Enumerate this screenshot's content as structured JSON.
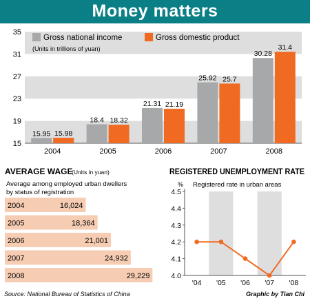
{
  "title": "Money matters",
  "source": "Source: National Bureau of Statistics of China",
  "credit": "Graphic by Tian Chi",
  "colors": {
    "header": "#0a7f86",
    "gni": "#a7a8aa",
    "gdp": "#f06a22",
    "band": "#dedede",
    "wagebar": "#f6cdb3"
  },
  "chart_data": [
    {
      "type": "bar",
      "title": "",
      "subtitle": "(Units in trillions of yuan)",
      "categories": [
        "2004",
        "2005",
        "2006",
        "2007",
        "2008"
      ],
      "series": [
        {
          "name": "Gross national income",
          "values": [
            15.95,
            18.4,
            21.31,
            25.92,
            30.28
          ],
          "labels": [
            "15.95",
            "18.4",
            "21.31",
            "25.92",
            "30.28"
          ]
        },
        {
          "name": "Gross domestic product",
          "values": [
            15.98,
            18.32,
            21.19,
            25.7,
            31.4
          ],
          "labels": [
            "15.98",
            "18.32",
            "21.19",
            "25.7",
            "31.4"
          ]
        }
      ],
      "yticks": [
        "15",
        "19",
        "23",
        "27",
        "31",
        "35"
      ],
      "ylim": [
        15,
        35
      ],
      "legend": "top-left",
      "grid": "alternating bands"
    },
    {
      "type": "bar",
      "orientation": "horizontal",
      "title": "AVERAGE WAGE",
      "units": "(Units in yuan)",
      "subtitle": "Average among employed urban dwellers by status of registration",
      "categories": [
        "2004",
        "2005",
        "2006",
        "2007",
        "2008"
      ],
      "values": [
        16024,
        18364,
        21001,
        24932,
        29229
      ],
      "labels": [
        "16,024",
        "18,364",
        "21,001",
        "24,932",
        "29,229"
      ]
    },
    {
      "type": "line",
      "title": "REGISTERED UNEMPLOYMENT RATE",
      "subtitle": "Registered rate in urban areas",
      "ylabel": "%",
      "categories": [
        "'04",
        "'05",
        "'06",
        "'07",
        "'08"
      ],
      "values": [
        4.2,
        4.2,
        4.1,
        4.0,
        4.2
      ],
      "yticks": [
        "4.0",
        "4.1",
        "4.2",
        "4.3",
        "4.4",
        "4.5"
      ],
      "ylim": [
        4.0,
        4.5
      ]
    }
  ]
}
